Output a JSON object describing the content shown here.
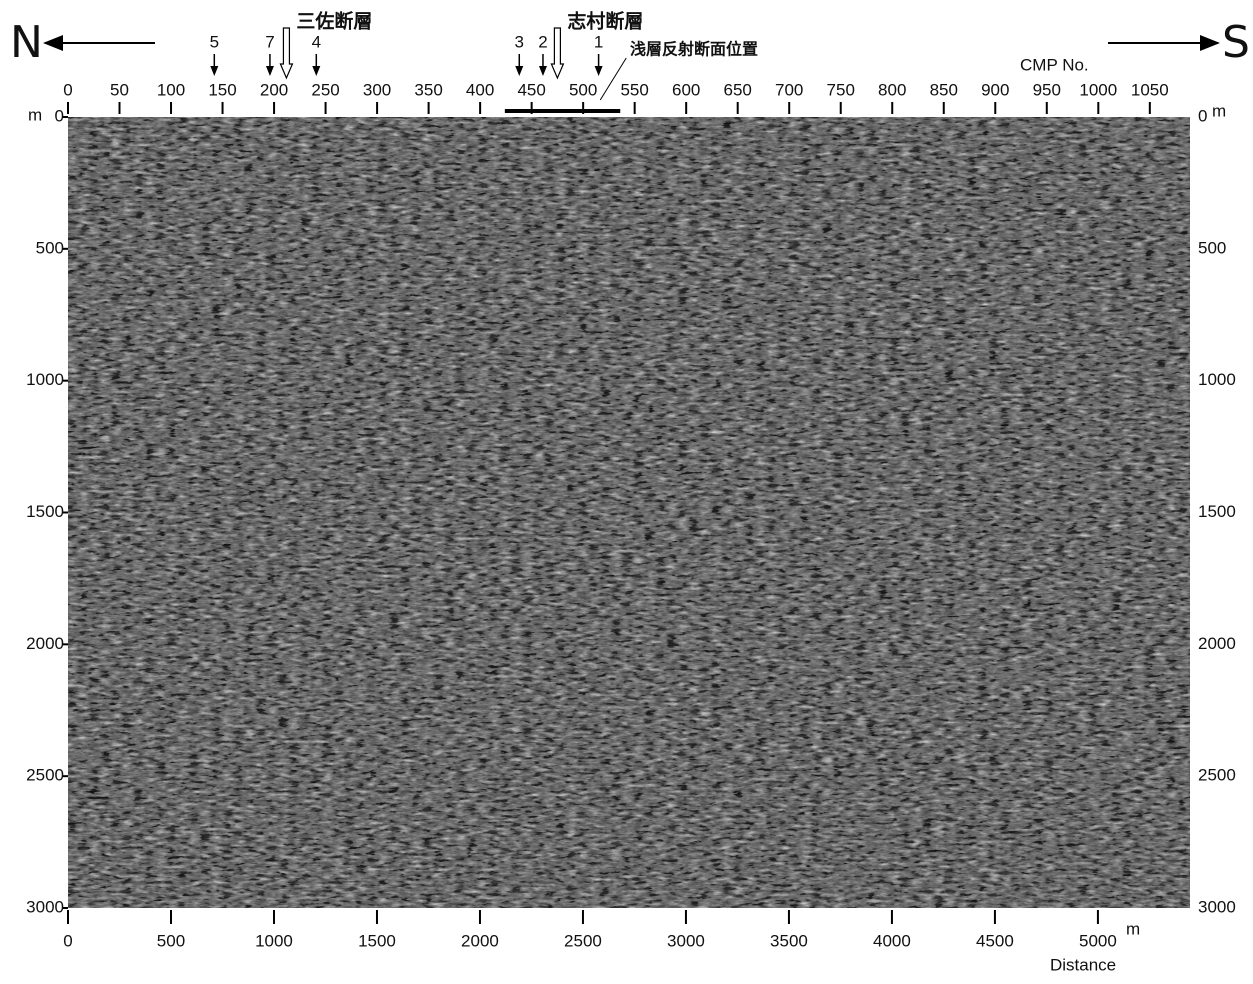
{
  "directions": {
    "left": "N",
    "right": "S"
  },
  "top_axis": {
    "label": "CMP No.",
    "lim": [
      0,
      1089
    ],
    "ticks": [
      0,
      50,
      100,
      150,
      200,
      250,
      300,
      350,
      400,
      450,
      500,
      550,
      600,
      650,
      700,
      750,
      800,
      850,
      900,
      950,
      1000,
      1050
    ]
  },
  "bottom_axis": {
    "label": "Distance",
    "unit": "m",
    "lim": [
      0,
      5447
    ],
    "ticks": [
      0,
      500,
      1000,
      1500,
      2000,
      2500,
      3000,
      3500,
      4000,
      4500,
      5000
    ]
  },
  "depth_axis": {
    "unit": "m",
    "lim": [
      0,
      3000
    ],
    "ticks": [
      0,
      500,
      1000,
      1500,
      2000,
      2500,
      3000
    ]
  },
  "markers": [
    {
      "label": "5",
      "cmp": 142
    },
    {
      "label": "7",
      "cmp": 196
    },
    {
      "label": "4",
      "cmp": 241
    },
    {
      "label": "3",
      "cmp": 438
    },
    {
      "label": "2",
      "cmp": 461
    },
    {
      "label": "1",
      "cmp": 515
    }
  ],
  "faults": [
    {
      "name": "三佐断層",
      "cmp": 212
    },
    {
      "name": "志村断層",
      "cmp": 475
    }
  ],
  "shallow_section": {
    "label": "浅層反射断面位置",
    "cmp_range": [
      424,
      536
    ]
  }
}
